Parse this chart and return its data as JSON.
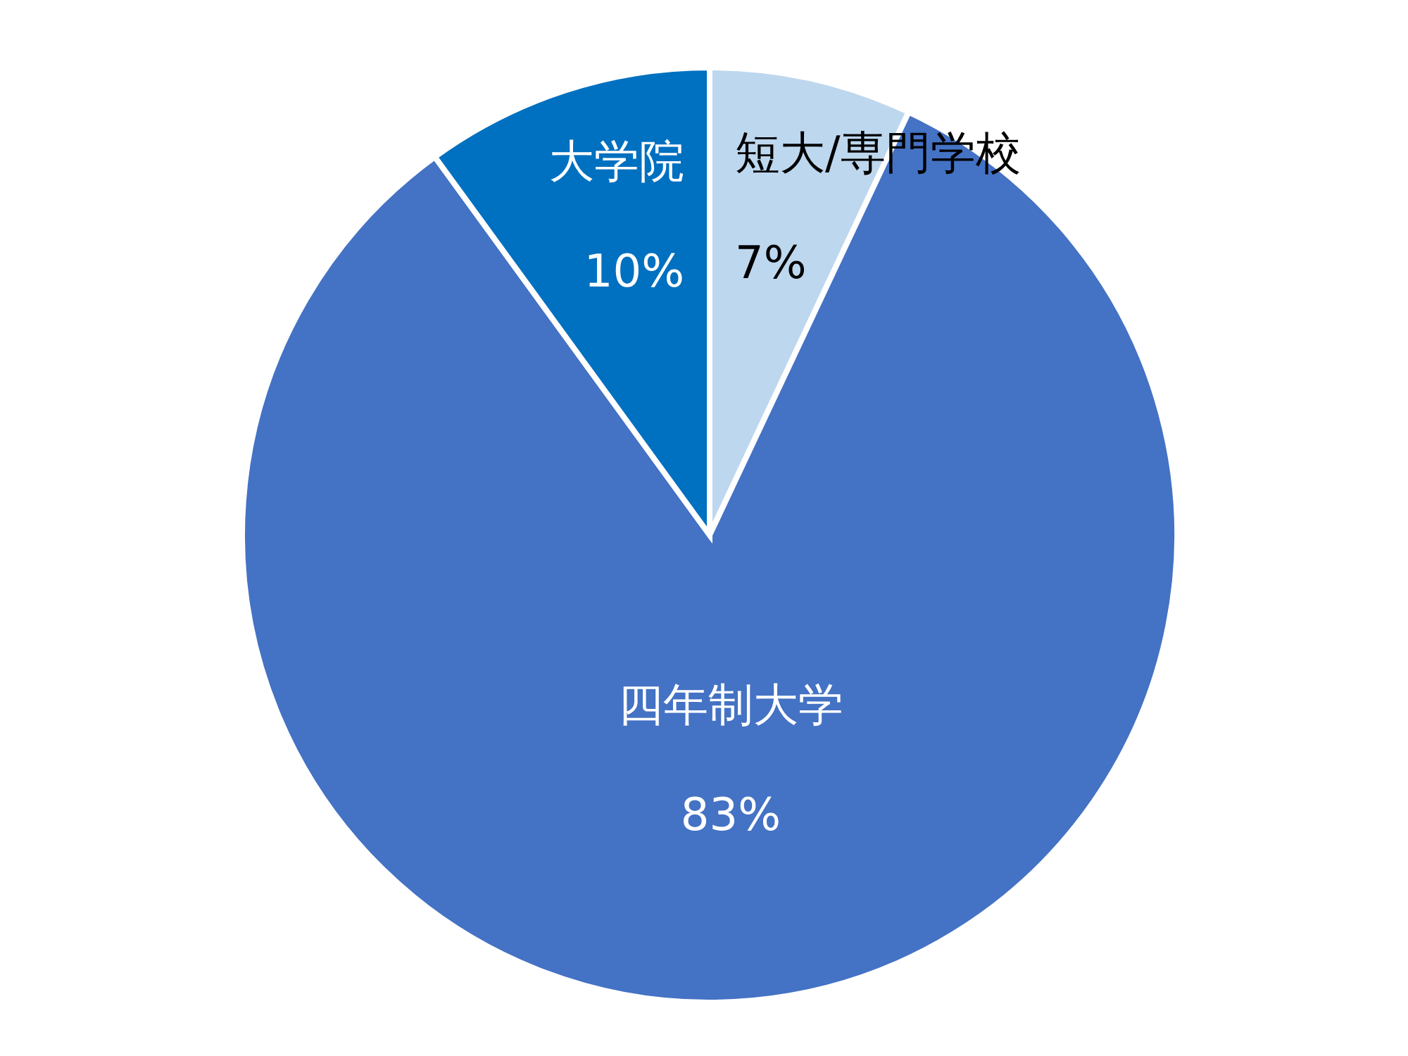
{
  "chart_data": {
    "type": "pie",
    "categories": [
      "短大/専門学校",
      "四年制大学",
      "大学院"
    ],
    "values": [
      7,
      83,
      10
    ],
    "colors": [
      "#bdd7ee",
      "#4472c4",
      "#0070c0"
    ],
    "value_labels": [
      "7%",
      "83%",
      "10%"
    ]
  }
}
